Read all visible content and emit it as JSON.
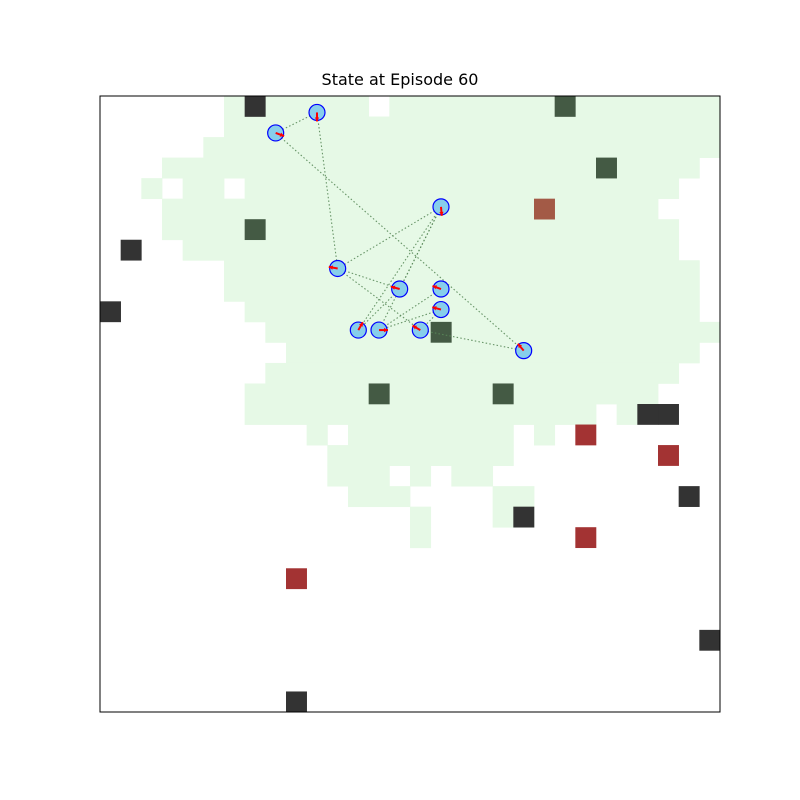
{
  "colors": {
    "explored": "#e6f9e6",
    "obstacle": "#333333",
    "covered_obstacle": "#445a44",
    "target": "#a33333",
    "covered_target": "#a35a46",
    "agent_fill": "#87ceeb",
    "agent_edge": "#0000ff",
    "heading": "#ff0000",
    "link": "#5a8a5a"
  },
  "chart_data": {
    "type": "heatmap",
    "title": "State at Episode 60",
    "xlabel": "",
    "ylabel": "",
    "grid_size": [
      30,
      30
    ],
    "explored_rows": [
      {
        "row": 0,
        "runs": [
          [
            6,
            12
          ],
          [
            14,
            29
          ]
        ]
      },
      {
        "row": 1,
        "runs": [
          [
            6,
            29
          ]
        ]
      },
      {
        "row": 2,
        "runs": [
          [
            5,
            29
          ]
        ]
      },
      {
        "row": 3,
        "runs": [
          [
            3,
            28
          ]
        ]
      },
      {
        "row": 4,
        "runs": [
          [
            2,
            2
          ],
          [
            4,
            5
          ],
          [
            7,
            27
          ]
        ]
      },
      {
        "row": 5,
        "runs": [
          [
            3,
            26
          ]
        ]
      },
      {
        "row": 6,
        "runs": [
          [
            3,
            27
          ]
        ]
      },
      {
        "row": 7,
        "runs": [
          [
            4,
            27
          ]
        ]
      },
      {
        "row": 8,
        "runs": [
          [
            6,
            28
          ]
        ]
      },
      {
        "row": 9,
        "runs": [
          [
            6,
            28
          ]
        ]
      },
      {
        "row": 10,
        "runs": [
          [
            7,
            28
          ]
        ]
      },
      {
        "row": 11,
        "runs": [
          [
            8,
            29
          ]
        ]
      },
      {
        "row": 12,
        "runs": [
          [
            9,
            28
          ]
        ]
      },
      {
        "row": 13,
        "runs": [
          [
            8,
            27
          ]
        ]
      },
      {
        "row": 14,
        "runs": [
          [
            7,
            26
          ]
        ]
      },
      {
        "row": 15,
        "runs": [
          [
            7,
            23
          ],
          [
            25,
            25
          ]
        ]
      },
      {
        "row": 16,
        "runs": [
          [
            10,
            10
          ],
          [
            12,
            19
          ],
          [
            21,
            21
          ]
        ]
      },
      {
        "row": 17,
        "runs": [
          [
            11,
            19
          ]
        ]
      },
      {
        "row": 18,
        "runs": [
          [
            11,
            13
          ],
          [
            15,
            15
          ],
          [
            17,
            18
          ]
        ]
      },
      {
        "row": 19,
        "runs": [
          [
            12,
            14
          ],
          [
            19,
            20
          ]
        ]
      },
      {
        "row": 20,
        "runs": [
          [
            15,
            15
          ],
          [
            19,
            20
          ]
        ]
      },
      {
        "row": 21,
        "runs": [
          [
            15,
            15
          ]
        ]
      }
    ],
    "obstacles": [
      [
        7,
        0
      ],
      [
        1,
        7
      ],
      [
        0,
        10
      ],
      [
        27,
        15
      ],
      [
        26,
        15
      ],
      [
        28,
        19
      ],
      [
        20,
        20
      ],
      [
        29,
        26
      ],
      [
        9,
        29
      ]
    ],
    "covered_obstacles": [
      [
        22,
        0
      ],
      [
        24,
        3
      ],
      [
        7,
        6
      ],
      [
        16,
        11
      ],
      [
        13,
        14
      ],
      [
        19,
        14
      ]
    ],
    "targets": [
      [
        23,
        16
      ],
      [
        27,
        17
      ],
      [
        23,
        21
      ],
      [
        9,
        23
      ]
    ],
    "covered_targets": [
      [
        21,
        5
      ]
    ],
    "agents": [
      {
        "x": 10.5,
        "y": 0.8,
        "heading": 90
      },
      {
        "x": 8.5,
        "y": 1.8,
        "heading": 20
      },
      {
        "x": 16.5,
        "y": 5.4,
        "heading": 85
      },
      {
        "x": 11.5,
        "y": 8.4,
        "heading": 190
      },
      {
        "x": 14.5,
        "y": 9.4,
        "heading": 195
      },
      {
        "x": 16.5,
        "y": 9.4,
        "heading": 200
      },
      {
        "x": 16.5,
        "y": 10.4,
        "heading": 195
      },
      {
        "x": 12.5,
        "y": 11.4,
        "heading": 300
      },
      {
        "x": 13.5,
        "y": 11.4,
        "heading": 0
      },
      {
        "x": 15.5,
        "y": 11.4,
        "heading": 210
      },
      {
        "x": 20.5,
        "y": 12.4,
        "heading": 230
      }
    ],
    "links": [
      [
        0,
        1
      ],
      [
        0,
        3
      ],
      [
        1,
        10
      ],
      [
        2,
        3
      ],
      [
        2,
        4
      ],
      [
        2,
        7
      ],
      [
        2,
        8
      ],
      [
        3,
        4
      ],
      [
        3,
        9
      ],
      [
        4,
        7
      ],
      [
        5,
        8
      ],
      [
        6,
        8
      ],
      [
        6,
        9
      ],
      [
        9,
        10
      ]
    ]
  }
}
